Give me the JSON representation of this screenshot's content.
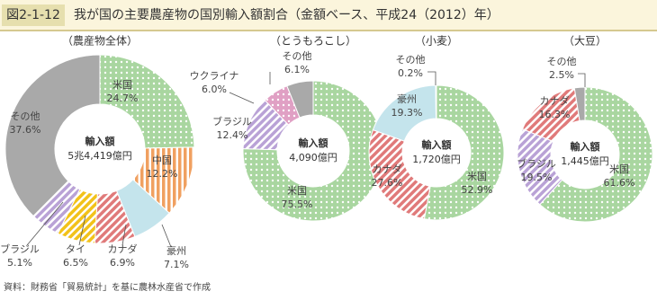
{
  "header": {
    "figure_no": "図2-1-12",
    "title": "我が国の主要農産物の国別輸入額割合（金額ベース、平成24（2012）年）"
  },
  "chart_data": [
    {
      "type": "donut",
      "title": "（農産物全体）",
      "center_label": "輸入額",
      "center_value": "5兆4,419億円",
      "categories": [
        "米国",
        "中国",
        "豪州",
        "カナダ",
        "タイ",
        "ブラジル",
        "その他"
      ],
      "values": [
        24.7,
        12.2,
        7.1,
        6.9,
        6.5,
        5.1,
        37.6
      ],
      "value_labels": [
        "24.7%",
        "12.2%",
        "7.1%",
        "6.9%",
        "6.5%",
        "5.1%",
        "37.6%"
      ],
      "colors": [
        "#a9d6a0",
        "#f0a060",
        "#c4e4ec",
        "#e07a7a",
        "#f2c21a",
        "#b9a2d6",
        "#a9a9a9"
      ],
      "patterns": [
        "dots",
        "stripes",
        "none",
        "hatch",
        "hatch",
        "hatch",
        "none"
      ]
    },
    {
      "type": "donut",
      "title": "（とうもろこし）",
      "center_label": "輸入額",
      "center_value": "4,090億円",
      "categories": [
        "米国",
        "ブラジル",
        "ウクライナ",
        "その他"
      ],
      "values": [
        75.5,
        12.4,
        6.0,
        6.1
      ],
      "value_labels": [
        "75.5%",
        "12.4%",
        "6.0%",
        "6.1%"
      ],
      "colors": [
        "#a9d6a0",
        "#b9a2d6",
        "#e0a0c4",
        "#a9a9a9"
      ],
      "patterns": [
        "dots",
        "hatch",
        "dots",
        "none"
      ]
    },
    {
      "type": "donut",
      "title": "（小麦）",
      "center_label": "輸入額",
      "center_value": "1,720億円",
      "categories": [
        "米国",
        "カナダ",
        "豪州",
        "その他"
      ],
      "values": [
        52.9,
        27.6,
        19.3,
        0.2
      ],
      "value_labels": [
        "52.9%",
        "27.6%",
        "19.3%",
        "0.2%"
      ],
      "colors": [
        "#a9d6a0",
        "#e07a7a",
        "#c4e4ec",
        "#a9a9a9"
      ],
      "patterns": [
        "dots",
        "hatch",
        "none",
        "none"
      ]
    },
    {
      "type": "donut",
      "title": "（大豆）",
      "center_label": "輸入額",
      "center_value": "1,445億円",
      "categories": [
        "米国",
        "ブラジル",
        "カナダ",
        "その他"
      ],
      "values": [
        61.6,
        19.5,
        16.3,
        2.5
      ],
      "value_labels": [
        "61.6%",
        "19.5%",
        "16.3%",
        "2.5%"
      ],
      "colors": [
        "#a9d6a0",
        "#b9a2d6",
        "#e07a7a",
        "#a9a9a9"
      ],
      "patterns": [
        "dots",
        "hatch",
        "hatch",
        "none"
      ]
    }
  ],
  "source": "資料：財務省「貿易統計」を基に農林水産省で作成"
}
